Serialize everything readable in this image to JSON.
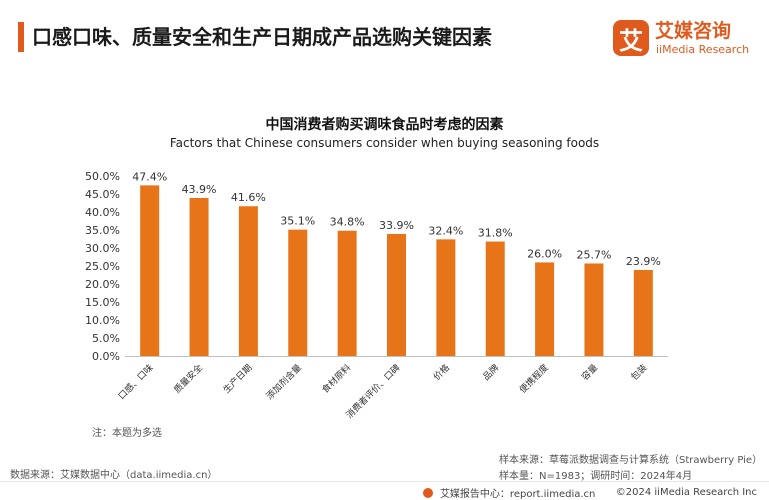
{
  "page": {
    "title": "口感口味、质量安全和生产日期成产品选购关键因素"
  },
  "logo": {
    "mark": "艾",
    "cn": "艾媒咨询",
    "en": "iiMedia Research"
  },
  "chart_data": {
    "type": "bar",
    "title": "中国消费者购买调味食品时考虑的因素",
    "subtitle": "Factors that Chinese consumers consider when buying seasoning foods",
    "categories": [
      "口感、口味",
      "质量安全",
      "生产日期",
      "添加剂含量",
      "食材原料",
      "消费者评价、口碑",
      "价格",
      "品牌",
      "便携程度",
      "容量",
      "包装"
    ],
    "values": [
      47.4,
      43.9,
      41.6,
      35.1,
      34.8,
      33.9,
      32.4,
      31.8,
      26.0,
      25.7,
      23.9
    ],
    "value_labels": [
      "47.4%",
      "43.9%",
      "41.6%",
      "35.1%",
      "34.8%",
      "33.9%",
      "32.4%",
      "31.8%",
      "26.0%",
      "25.7%",
      "23.9%"
    ],
    "y_ticks": [
      "0.0%",
      "5.0%",
      "10.0%",
      "15.0%",
      "20.0%",
      "25.0%",
      "30.0%",
      "35.0%",
      "40.0%",
      "45.0%",
      "50.0%"
    ],
    "ylim": [
      0,
      50
    ],
    "bar_color": "#e8741a",
    "grid": false,
    "xlabel": "",
    "ylabel": ""
  },
  "notes": {
    "footnote": "注：本题为多选",
    "data_source": "数据来源：艾媒数据中心（data.iimedia.cn）",
    "sample_source": "样本来源：草莓派数据调查与计算系统（Strawberry Pie）",
    "sample_size": "样本量：N=1983；调研时间：2024年4月"
  },
  "footer": {
    "report_center": "艾媒报告中心：report.iimedia.cn",
    "copyright": "©2024  iiMedia Research Inc"
  },
  "colors": {
    "accent": "#e05a1e",
    "bar": "#e8741a"
  }
}
